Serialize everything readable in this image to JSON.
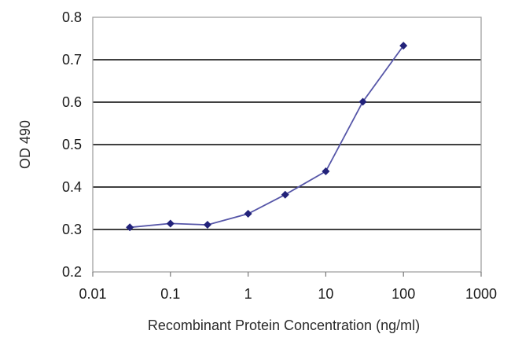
{
  "chart_data": {
    "type": "line",
    "title": "",
    "xlabel": "Recombinant Protein Concentration (ng/ml)",
    "ylabel": "OD 490",
    "x_scale": "log",
    "xlim": [
      0.01,
      1000
    ],
    "ylim": [
      0.2,
      0.8
    ],
    "x_ticks": [
      0.01,
      0.1,
      1,
      10,
      100,
      1000
    ],
    "x_tick_labels": [
      "0.01",
      "0.1",
      "1",
      "10",
      "100",
      "1000"
    ],
    "y_ticks": [
      0.2,
      0.3,
      0.4,
      0.5,
      0.6,
      0.7,
      0.8
    ],
    "y_tick_labels": [
      "0.2",
      "0.3",
      "0.4",
      "0.5",
      "0.6",
      "0.7",
      "0.8"
    ],
    "grid": "horizontal",
    "legend": "none",
    "colors": {
      "series": "#5656a8",
      "marker": "#22227a",
      "grid": "#000000",
      "plot_border": "#999999"
    },
    "series": [
      {
        "x": [
          0.03,
          0.1,
          0.3,
          1,
          3,
          10,
          30,
          100
        ],
        "y": [
          0.305,
          0.314,
          0.311,
          0.337,
          0.382,
          0.437,
          0.601,
          0.733
        ]
      }
    ]
  }
}
